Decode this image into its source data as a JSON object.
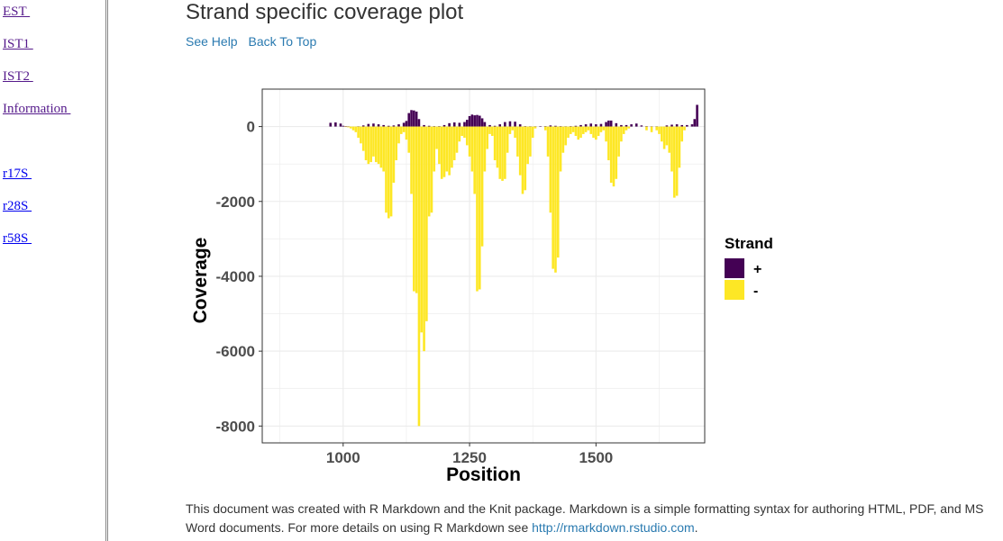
{
  "sidebar": {
    "items": [
      {
        "label": "EST ",
        "state": "visited"
      },
      {
        "label": "IST1 ",
        "state": "visited"
      },
      {
        "label": "IST2 ",
        "state": "visited"
      },
      {
        "label": "Information ",
        "state": "visited"
      },
      {
        "label": "r17S ",
        "state": "unvisited"
      },
      {
        "label": "r28S ",
        "state": "unvisited"
      },
      {
        "label": "r58S ",
        "state": "unvisited"
      }
    ]
  },
  "page": {
    "title": "Strand specific coverage plot",
    "links": {
      "help": "See Help",
      "top": "Back To Top"
    }
  },
  "footer": {
    "text": "This document was created with R Markdown and the Knit package. Markdown is a simple formatting syntax for authoring HTML, PDF, and MS Word documents. For more details on using R Markdown see ",
    "link": "http://rmarkdown.rstudio.com",
    "end": "."
  },
  "chart_data": {
    "type": "bar",
    "title": "",
    "xlabel": "Position",
    "ylabel": "Coverage",
    "xlim": [
      840,
      1715
    ],
    "ylim": [
      -8450,
      1000
    ],
    "xticks": [
      1000,
      1250,
      1500
    ],
    "yticks": [
      0,
      -2000,
      -4000,
      -6000,
      -8000
    ],
    "grid": true,
    "legend": {
      "title": "Strand",
      "position": "right",
      "entries": [
        "+",
        "-"
      ]
    },
    "colors": {
      "plus": "#440154",
      "minus": "#fde725",
      "grid": "#ebebeb",
      "border": "#333333"
    },
    "series": [
      {
        "name": "+",
        "points": [
          [
            975,
            100
          ],
          [
            985,
            110
          ],
          [
            995,
            80
          ],
          [
            1000,
            20
          ],
          [
            1005,
            10
          ],
          [
            1010,
            5
          ],
          [
            1030,
            5
          ],
          [
            1040,
            30
          ],
          [
            1050,
            70
          ],
          [
            1060,
            80
          ],
          [
            1070,
            60
          ],
          [
            1080,
            40
          ],
          [
            1090,
            20
          ],
          [
            1100,
            30
          ],
          [
            1110,
            60
          ],
          [
            1120,
            100
          ],
          [
            1125,
            150
          ],
          [
            1130,
            360
          ],
          [
            1135,
            440
          ],
          [
            1140,
            430
          ],
          [
            1145,
            400
          ],
          [
            1150,
            200
          ],
          [
            1160,
            40
          ],
          [
            1170,
            20
          ],
          [
            1180,
            10
          ],
          [
            1190,
            10
          ],
          [
            1200,
            40
          ],
          [
            1210,
            90
          ],
          [
            1220,
            110
          ],
          [
            1230,
            100
          ],
          [
            1240,
            120
          ],
          [
            1245,
            180
          ],
          [
            1250,
            280
          ],
          [
            1255,
            320
          ],
          [
            1260,
            300
          ],
          [
            1265,
            310
          ],
          [
            1270,
            290
          ],
          [
            1275,
            220
          ],
          [
            1280,
            120
          ],
          [
            1290,
            40
          ],
          [
            1300,
            20
          ],
          [
            1310,
            60
          ],
          [
            1320,
            120
          ],
          [
            1330,
            140
          ],
          [
            1340,
            130
          ],
          [
            1350,
            60
          ],
          [
            1360,
            10
          ],
          [
            1370,
            5
          ],
          [
            1380,
            5
          ],
          [
            1390,
            5
          ],
          [
            1400,
            10
          ],
          [
            1410,
            30
          ],
          [
            1420,
            20
          ],
          [
            1430,
            10
          ],
          [
            1440,
            5
          ],
          [
            1450,
            10
          ],
          [
            1460,
            20
          ],
          [
            1470,
            40
          ],
          [
            1480,
            60
          ],
          [
            1490,
            80
          ],
          [
            1500,
            60
          ],
          [
            1510,
            70
          ],
          [
            1520,
            120
          ],
          [
            1525,
            160
          ],
          [
            1530,
            160
          ],
          [
            1540,
            90
          ],
          [
            1550,
            40
          ],
          [
            1560,
            40
          ],
          [
            1570,
            60
          ],
          [
            1580,
            80
          ],
          [
            1590,
            30
          ],
          [
            1600,
            10
          ],
          [
            1610,
            5
          ],
          [
            1620,
            5
          ],
          [
            1640,
            30
          ],
          [
            1650,
            50
          ],
          [
            1660,
            60
          ],
          [
            1670,
            40
          ],
          [
            1680,
            40
          ],
          [
            1690,
            60
          ],
          [
            1695,
            200
          ],
          [
            1700,
            580
          ]
        ]
      },
      {
        "name": "-",
        "points": [
          [
            1005,
            -5
          ],
          [
            1010,
            -20
          ],
          [
            1015,
            -50
          ],
          [
            1020,
            -100
          ],
          [
            1025,
            -150
          ],
          [
            1030,
            -300
          ],
          [
            1035,
            -450
          ],
          [
            1040,
            -650
          ],
          [
            1045,
            -900
          ],
          [
            1050,
            -1000
          ],
          [
            1055,
            -950
          ],
          [
            1060,
            -800
          ],
          [
            1065,
            -950
          ],
          [
            1070,
            -1000
          ],
          [
            1075,
            -1100
          ],
          [
            1080,
            -1200
          ],
          [
            1085,
            -2300
          ],
          [
            1090,
            -2450
          ],
          [
            1095,
            -2400
          ],
          [
            1100,
            -1500
          ],
          [
            1105,
            -900
          ],
          [
            1110,
            -450
          ],
          [
            1115,
            -200
          ],
          [
            1120,
            -150
          ],
          [
            1125,
            -350
          ],
          [
            1130,
            -700
          ],
          [
            1135,
            -1800
          ],
          [
            1140,
            -4400
          ],
          [
            1145,
            -4450
          ],
          [
            1150,
            -8000
          ],
          [
            1155,
            -5500
          ],
          [
            1160,
            -6000
          ],
          [
            1165,
            -5200
          ],
          [
            1170,
            -2400
          ],
          [
            1175,
            -2300
          ],
          [
            1180,
            -1200
          ],
          [
            1185,
            -600
          ],
          [
            1190,
            -1000
          ],
          [
            1195,
            -1400
          ],
          [
            1200,
            -1350
          ],
          [
            1205,
            -1200
          ],
          [
            1210,
            -1300
          ],
          [
            1215,
            -1100
          ],
          [
            1220,
            -900
          ],
          [
            1225,
            -700
          ],
          [
            1230,
            -400
          ],
          [
            1235,
            -250
          ],
          [
            1240,
            -300
          ],
          [
            1245,
            -500
          ],
          [
            1250,
            -800
          ],
          [
            1255,
            -1200
          ],
          [
            1260,
            -1800
          ],
          [
            1265,
            -4400
          ],
          [
            1270,
            -4350
          ],
          [
            1275,
            -3200
          ],
          [
            1280,
            -1200
          ],
          [
            1285,
            -600
          ],
          [
            1290,
            -200
          ],
          [
            1295,
            -250
          ],
          [
            1300,
            -900
          ],
          [
            1305,
            -1100
          ],
          [
            1310,
            -1400
          ],
          [
            1315,
            -1450
          ],
          [
            1320,
            -1400
          ],
          [
            1325,
            -700
          ],
          [
            1330,
            -200
          ],
          [
            1335,
            -100
          ],
          [
            1340,
            -300
          ],
          [
            1345,
            -800
          ],
          [
            1350,
            -1300
          ],
          [
            1355,
            -1800
          ],
          [
            1360,
            -1700
          ],
          [
            1365,
            -1000
          ],
          [
            1370,
            -800
          ],
          [
            1375,
            -300
          ],
          [
            1380,
            -50
          ],
          [
            1400,
            -100
          ],
          [
            1405,
            -800
          ],
          [
            1410,
            -2300
          ],
          [
            1415,
            -3800
          ],
          [
            1420,
            -3900
          ],
          [
            1425,
            -3500
          ],
          [
            1430,
            -1200
          ],
          [
            1435,
            -700
          ],
          [
            1440,
            -500
          ],
          [
            1445,
            -300
          ],
          [
            1450,
            -200
          ],
          [
            1455,
            -150
          ],
          [
            1460,
            -250
          ],
          [
            1465,
            -350
          ],
          [
            1470,
            -300
          ],
          [
            1475,
            -200
          ],
          [
            1480,
            -150
          ],
          [
            1485,
            -100
          ],
          [
            1490,
            -200
          ],
          [
            1495,
            -300
          ],
          [
            1500,
            -350
          ],
          [
            1505,
            -250
          ],
          [
            1510,
            -150
          ],
          [
            1515,
            -100
          ],
          [
            1520,
            -400
          ],
          [
            1525,
            -900
          ],
          [
            1530,
            -1500
          ],
          [
            1535,
            -1600
          ],
          [
            1540,
            -1400
          ],
          [
            1545,
            -800
          ],
          [
            1550,
            -400
          ],
          [
            1555,
            -200
          ],
          [
            1560,
            -100
          ],
          [
            1565,
            -50
          ],
          [
            1600,
            -100
          ],
          [
            1610,
            -150
          ],
          [
            1620,
            -100
          ],
          [
            1625,
            -200
          ],
          [
            1630,
            -400
          ],
          [
            1635,
            -600
          ],
          [
            1640,
            -500
          ],
          [
            1645,
            -700
          ],
          [
            1650,
            -1200
          ],
          [
            1655,
            -1900
          ],
          [
            1660,
            -1850
          ],
          [
            1665,
            -1100
          ],
          [
            1670,
            -400
          ],
          [
            1675,
            -100
          ]
        ]
      }
    ]
  }
}
